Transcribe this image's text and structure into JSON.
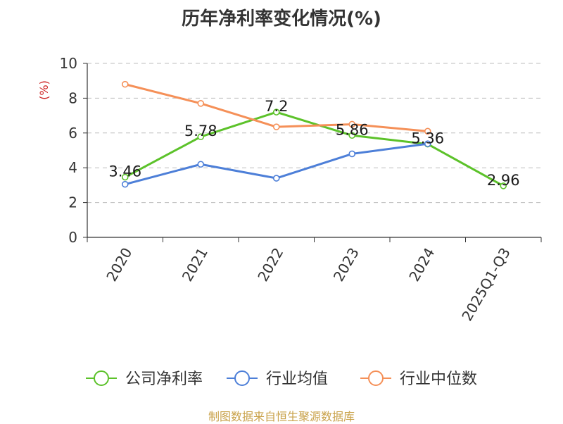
{
  "title": "历年净利率变化情况(%)",
  "footer": "制图数据来自恒生聚源数据库",
  "chart_data": {
    "type": "line",
    "title": "历年净利率变化情况(%)",
    "ylabel": "(%)",
    "ylim": [
      0,
      10
    ],
    "yticks": [
      0,
      2,
      4,
      6,
      8,
      10
    ],
    "categories": [
      "2020",
      "2021",
      "2022",
      "2023",
      "2024",
      "2025Q1-Q3"
    ],
    "grid": true,
    "legend_position": "bottom",
    "series": [
      {
        "name": "公司净利率",
        "color": "#5cc22a",
        "labeled": true,
        "values": [
          3.46,
          5.78,
          7.2,
          5.86,
          5.36,
          2.96
        ]
      },
      {
        "name": "行业均值",
        "color": "#4d7fd8",
        "labeled": false,
        "values": [
          3.05,
          4.2,
          3.4,
          4.8,
          5.38,
          null
        ]
      },
      {
        "name": "行业中位数",
        "color": "#f59058",
        "labeled": false,
        "values": [
          8.8,
          7.7,
          6.35,
          6.5,
          6.1,
          null
        ]
      }
    ]
  }
}
